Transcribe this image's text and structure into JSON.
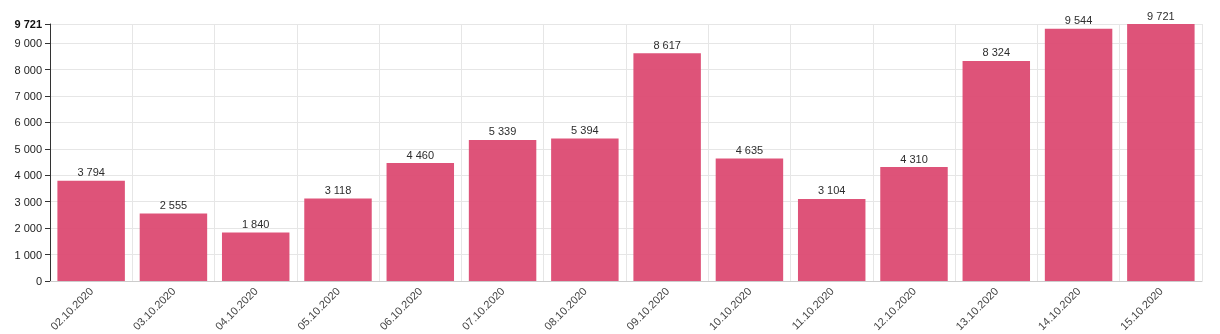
{
  "chart_data": {
    "type": "bar",
    "categories": [
      "02.10.2020",
      "03.10.2020",
      "04.10.2020",
      "05.10.2020",
      "06.10.2020",
      "07.10.2020",
      "08.10.2020",
      "09.10.2020",
      "10.10.2020",
      "11.10.2020",
      "12.10.2020",
      "13.10.2020",
      "14.10.2020",
      "15.10.2020"
    ],
    "values": [
      3794,
      2555,
      1840,
      3118,
      4460,
      5339,
      5394,
      8617,
      4635,
      3104,
      4310,
      8324,
      9544,
      9721
    ],
    "value_labels": [
      "3 794",
      "2 555",
      "1 840",
      "3 118",
      "4 460",
      "5 339",
      "5 394",
      "8 617",
      "4 635",
      "3 104",
      "4 310",
      "8 324",
      "9 544",
      "9 721"
    ],
    "color": "#dc4a72",
    "ylim": [
      0,
      9721
    ],
    "yticks": [
      {
        "value": 0,
        "label": "0"
      },
      {
        "value": 1000,
        "label": "1 000"
      },
      {
        "value": 2000,
        "label": "2 000"
      },
      {
        "value": 3000,
        "label": "3 000"
      },
      {
        "value": 4000,
        "label": "4 000"
      },
      {
        "value": 5000,
        "label": "5 000"
      },
      {
        "value": 6000,
        "label": "6 000"
      },
      {
        "value": 7000,
        "label": "7 000"
      },
      {
        "value": 8000,
        "label": "8 000"
      },
      {
        "value": 9000,
        "label": "9 000"
      },
      {
        "value": 9721,
        "label": "9 721"
      }
    ],
    "grid": true
  }
}
